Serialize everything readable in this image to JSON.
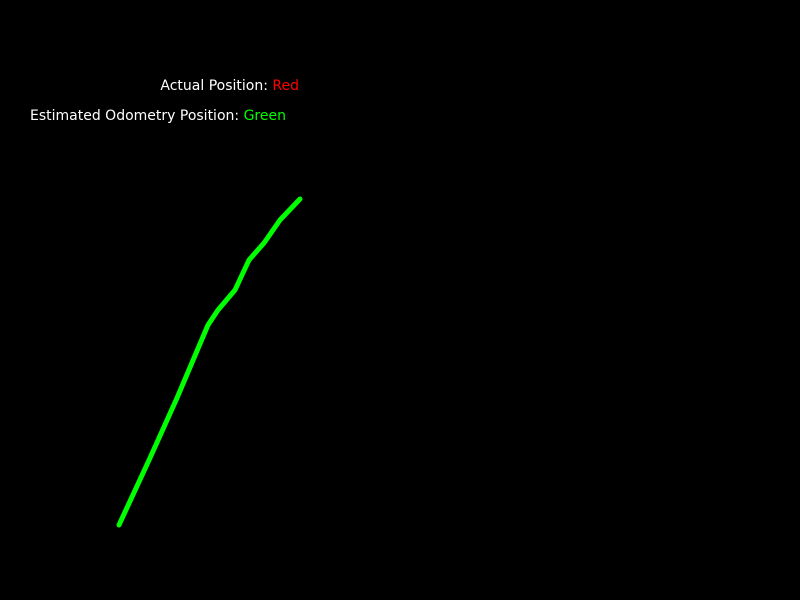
{
  "legend": {
    "actual_label": "Actual Position:",
    "actual_value": "Red",
    "estimated_label": "Estimated Odometry Position:",
    "estimated_value": "Green"
  },
  "colors": {
    "background": "#000000",
    "actual": "#ff0000",
    "estimated": "#00ff00",
    "label": "#ffffff"
  }
}
